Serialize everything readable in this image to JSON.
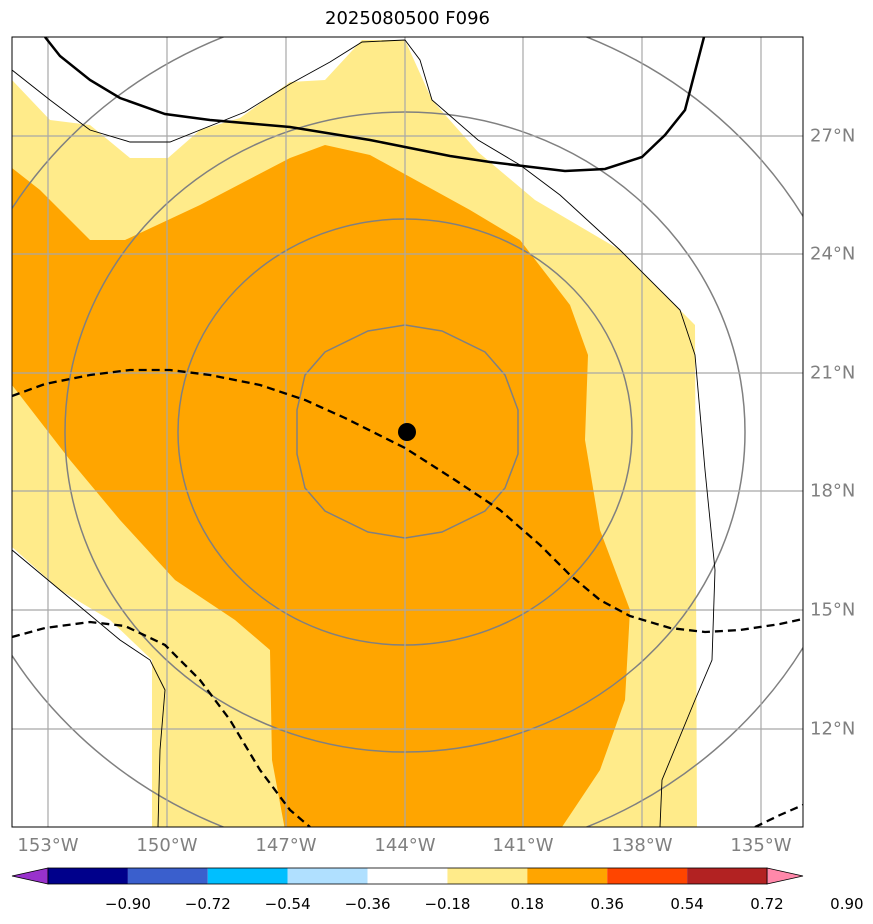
{
  "title": "2025080500 F096",
  "map": {
    "lon_ticks": [
      "153°W",
      "150°W",
      "147°W",
      "144°W",
      "141°W",
      "138°W",
      "135°W"
    ],
    "lat_ticks": [
      "27°N",
      "24°N",
      "21°N",
      "18°N",
      "15°N",
      "12°N"
    ],
    "center_marker": {
      "lon": -144,
      "lat": 19.5
    },
    "fill_colors": {
      "light": "#ffeb8a",
      "orange": "#ffa500"
    }
  },
  "colorbar": {
    "labels": [
      "−0.90",
      "−0.72",
      "−0.54",
      "−0.36",
      "−0.18",
      "0.18",
      "0.36",
      "0.54",
      "0.72",
      "0.90"
    ],
    "colors": [
      "#9932cc",
      "#00008b",
      "#3a5fcd",
      "#00bfff",
      "#b0e0ff",
      "#ffffff",
      "#ffeb8a",
      "#ffa500",
      "#ff4500",
      "#b22222",
      "#ff88aa"
    ]
  }
}
